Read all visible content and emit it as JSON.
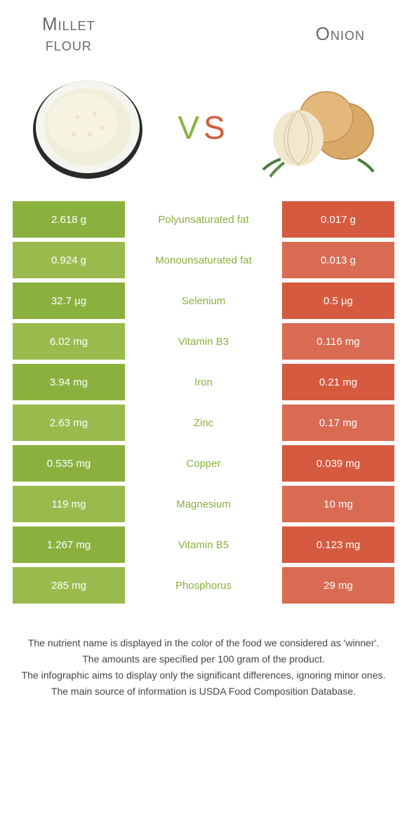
{
  "colors": {
    "left_primary": "#8ab13e",
    "left_alt": "#99bb4d",
    "right_primary": "#d65a3f",
    "right_alt": "#da6b53",
    "title_text": "#6a6a6a"
  },
  "foods": {
    "left": {
      "title_line1": "Millet",
      "title_line2": "flour"
    },
    "right": {
      "title_line1": "Onion",
      "title_line2": ""
    }
  },
  "vs_label": "VS",
  "rows": [
    {
      "nutrient": "Polyunsaturated fat",
      "left": "2.618 g",
      "right": "0.017 g",
      "winner": "left"
    },
    {
      "nutrient": "Monounsaturated fat",
      "left": "0.924 g",
      "right": "0.013 g",
      "winner": "left"
    },
    {
      "nutrient": "Selenium",
      "left": "32.7 µg",
      "right": "0.5 µg",
      "winner": "left"
    },
    {
      "nutrient": "Vitamin B3",
      "left": "6.02 mg",
      "right": "0.116 mg",
      "winner": "left"
    },
    {
      "nutrient": "Iron",
      "left": "3.94 mg",
      "right": "0.21 mg",
      "winner": "left"
    },
    {
      "nutrient": "Zinc",
      "left": "2.63 mg",
      "right": "0.17 mg",
      "winner": "left"
    },
    {
      "nutrient": "Copper",
      "left": "0.535 mg",
      "right": "0.039 mg",
      "winner": "left"
    },
    {
      "nutrient": "Magnesium",
      "left": "119 mg",
      "right": "10 mg",
      "winner": "left"
    },
    {
      "nutrient": "Vitamin B5",
      "left": "1.267 mg",
      "right": "0.123 mg",
      "winner": "left"
    },
    {
      "nutrient": "Phosphorus",
      "left": "285 mg",
      "right": "29 mg",
      "winner": "left"
    }
  ],
  "footer": {
    "line1": "The nutrient name is displayed in the color of the food we considered as 'winner'.",
    "line2": "The amounts are specified per 100 gram of the product.",
    "line3": "The infographic aims to display only the significant differences, ignoring minor ones.",
    "line4": "The main source of information is USDA Food Composition Database."
  }
}
